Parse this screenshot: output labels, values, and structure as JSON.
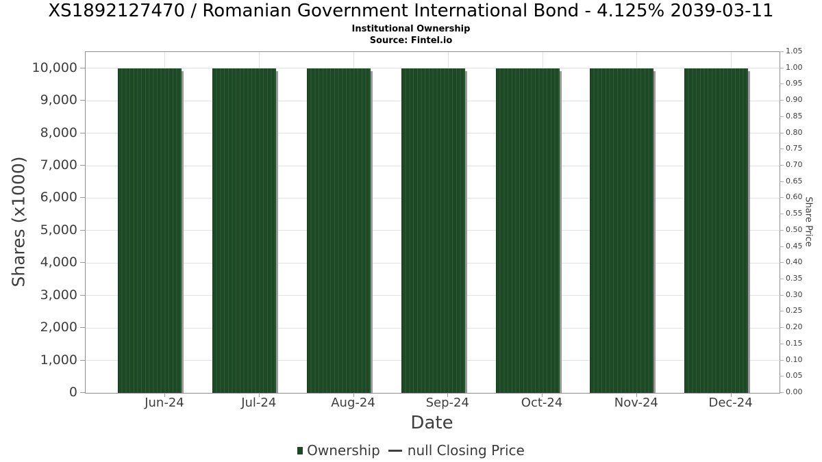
{
  "chart_data": {
    "type": "bar",
    "title": "XS1892127470 / Romanian Government International Bond - 4.125% 2039-03-11",
    "subtitle": "Institutional Ownership",
    "source": "Source: Fintel.io",
    "xlabel": "Date",
    "ylabel_left": "Shares (x1000)",
    "ylabel_right": "Share Price",
    "categories": [
      "Jun-24",
      "Jul-24",
      "Aug-24",
      "Sep-24",
      "Oct-24",
      "Nov-24",
      "Dec-24"
    ],
    "series": [
      {
        "name": "Ownership",
        "type": "bar",
        "color": "#1d4a25",
        "legend_marker": "bar-swatch-icon",
        "values": [
          10000,
          10000,
          10000,
          10000,
          10000,
          10000,
          10000
        ]
      },
      {
        "name": "null Closing Price",
        "type": "line",
        "color": "#3f3f3f",
        "legend_marker": "line-dash-icon",
        "values": []
      }
    ],
    "axis_left": {
      "min": 0,
      "max": 10500,
      "tick_values": [
        0,
        1000,
        2000,
        3000,
        4000,
        5000,
        6000,
        7000,
        8000,
        9000,
        10000
      ],
      "tick_labels": [
        "0",
        "1,000",
        "2,000",
        "3,000",
        "4,000",
        "5,000",
        "6,000",
        "7,000",
        "8,000",
        "9,000",
        "10,000"
      ]
    },
    "axis_right": {
      "min": 0,
      "max": 1.05,
      "tick_values": [
        0.0,
        0.05,
        0.1,
        0.15,
        0.2,
        0.25,
        0.3,
        0.35,
        0.4,
        0.45,
        0.5,
        0.55,
        0.6,
        0.65,
        0.7,
        0.75,
        0.8,
        0.85,
        0.9,
        0.95,
        1.0,
        1.05
      ],
      "tick_labels": [
        "0.00",
        "0.05",
        "0.10",
        "0.15",
        "0.20",
        "0.25",
        "0.30",
        "0.35",
        "0.40",
        "0.45",
        "0.50",
        "0.55",
        "0.60",
        "0.65",
        "0.70",
        "0.75",
        "0.80",
        "0.85",
        "0.90",
        "0.95",
        "1.00",
        "1.05"
      ]
    },
    "grid": true,
    "legend_position": "bottom",
    "colors": {
      "bar": "#1d4a25",
      "bar_stripe": "#31593a",
      "bar_shadow": "#999999",
      "gridline": "#e2e2e2",
      "spine": "#8f8f8f"
    }
  }
}
